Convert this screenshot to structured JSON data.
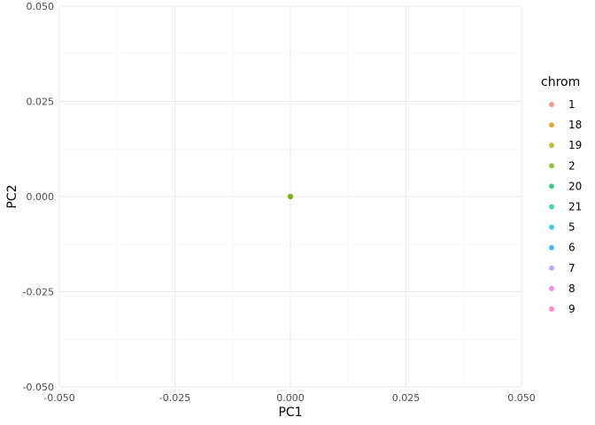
{
  "chart_data": {
    "type": "scatter",
    "xlabel": "PC1",
    "ylabel": "PC2",
    "xlim": [
      -0.05,
      0.05
    ],
    "ylim": [
      -0.05,
      0.05
    ],
    "x_ticks": [
      -0.05,
      -0.025,
      0,
      0.025,
      0.05
    ],
    "y_ticks": [
      -0.05,
      -0.025,
      0,
      0.025,
      0.05
    ],
    "x_tick_labels": [
      "-0.050",
      "-0.025",
      "0.000",
      "0.025",
      "0.050"
    ],
    "y_tick_labels": [
      "-0.050",
      "-0.025",
      "0.000",
      "0.025",
      "0.050"
    ],
    "grid": true,
    "legend": {
      "title": "chrom",
      "placement": "right",
      "entries": [
        {
          "label": "1",
          "color": "#F8766D"
        },
        {
          "label": "18",
          "color": "#DB8E00"
        },
        {
          "label": "19",
          "color": "#AEA200"
        },
        {
          "label": "2",
          "color": "#64B200"
        },
        {
          "label": "20",
          "color": "#00BD5C"
        },
        {
          "label": "21",
          "color": "#00C1A7"
        },
        {
          "label": "5",
          "color": "#00BADE"
        },
        {
          "label": "6",
          "color": "#00A6FF"
        },
        {
          "label": "7",
          "color": "#B385FF"
        },
        {
          "label": "8",
          "color": "#EF67EB"
        },
        {
          "label": "9",
          "color": "#FF63B6"
        }
      ]
    },
    "points": [
      {
        "x": 0,
        "y": 0,
        "color": "#F8766D"
      },
      {
        "x": 0,
        "y": 0,
        "color": "#DB8E00"
      },
      {
        "x": 0,
        "y": 0,
        "color": "#AEA200"
      },
      {
        "x": 0,
        "y": 0,
        "color": "#64B200"
      }
    ]
  }
}
